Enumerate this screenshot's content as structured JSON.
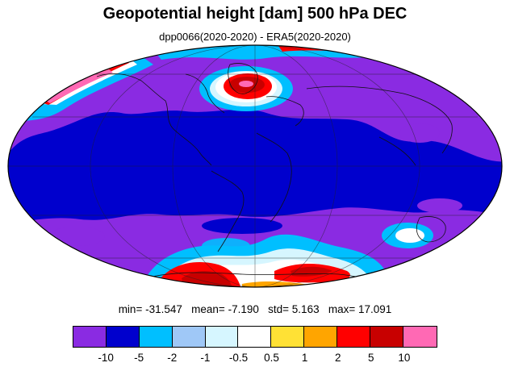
{
  "title": "Geopotential height [dam] 500 hPa DEC",
  "subtitle": "dpp0066(2020-2020) - ERA5(2020-2020)",
  "stats": {
    "min_label": "min=",
    "min": "-31.547",
    "mean_label": "mean=",
    "mean": "-7.190",
    "std_label": "std=",
    "std": "5.163",
    "max_label": "max=",
    "max": "17.091"
  },
  "colorbar": {
    "colors": [
      "#8a2be2",
      "#0000cd",
      "#00bfff",
      "#9fc8f7",
      "#d6f6ff",
      "#ffffff",
      "#ffe135",
      "#ffa500",
      "#ff0000",
      "#c80000",
      "#ff69b4"
    ],
    "tick_labels": [
      "-10",
      "-5",
      "-2",
      "-1",
      "-0.5",
      "0.5",
      "1",
      "2",
      "5",
      "10"
    ]
  },
  "map": {
    "projection": "mollweide",
    "background_color": "#0000cd"
  }
}
